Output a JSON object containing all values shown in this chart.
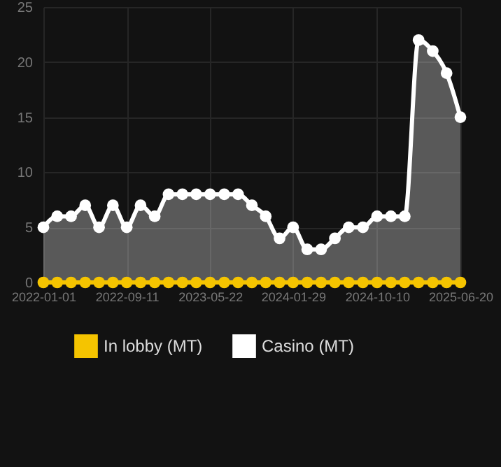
{
  "chart_data": {
    "type": "line",
    "x": [
      "2022-01-01",
      "2022-02-12",
      "2022-03-26",
      "2022-05-08",
      "2022-06-19",
      "2022-07-31",
      "2022-09-11",
      "2022-10-23",
      "2022-12-05",
      "2023-01-16",
      "2023-02-27",
      "2023-04-10",
      "2023-05-22",
      "2023-07-04",
      "2023-08-15",
      "2023-09-26",
      "2023-11-07",
      "2023-12-19",
      "2024-01-29",
      "2024-03-12",
      "2024-04-23",
      "2024-06-04",
      "2024-07-16",
      "2024-08-28",
      "2024-10-10",
      "2024-11-21",
      "2025-01-02",
      "2025-02-13",
      "2025-03-28",
      "2025-05-09",
      "2025-06-20"
    ],
    "series": [
      {
        "name": "In lobby (MT)",
        "color": "#f5c400",
        "values": [
          0,
          0,
          0,
          0,
          0,
          0,
          0,
          0,
          0,
          0,
          0,
          0,
          0,
          0,
          0,
          0,
          0,
          0,
          0,
          0,
          0,
          0,
          0,
          0,
          0,
          0,
          0,
          0,
          0,
          0,
          0
        ]
      },
      {
        "name": "Casino (MT)",
        "type": "area",
        "color": "#ffffff",
        "values": [
          5,
          6,
          6,
          7,
          5,
          7,
          5,
          7,
          6,
          8,
          8,
          8,
          8,
          8,
          8,
          7,
          6,
          4,
          5,
          3,
          3,
          4,
          5,
          5,
          6,
          6,
          6,
          22,
          21,
          19,
          15
        ]
      }
    ],
    "xlim": [
      "2022-01-01",
      "2025-06-20"
    ],
    "xticks": [
      "2022-01-01",
      "2022-09-11",
      "2023-05-22",
      "2024-01-29",
      "2024-10-10",
      "2025-06-20"
    ],
    "ylim": [
      0,
      25
    ],
    "yticks": [
      0,
      5,
      10,
      15,
      20,
      25
    ],
    "grid": true,
    "legend": "bottom",
    "marker": "circle"
  }
}
